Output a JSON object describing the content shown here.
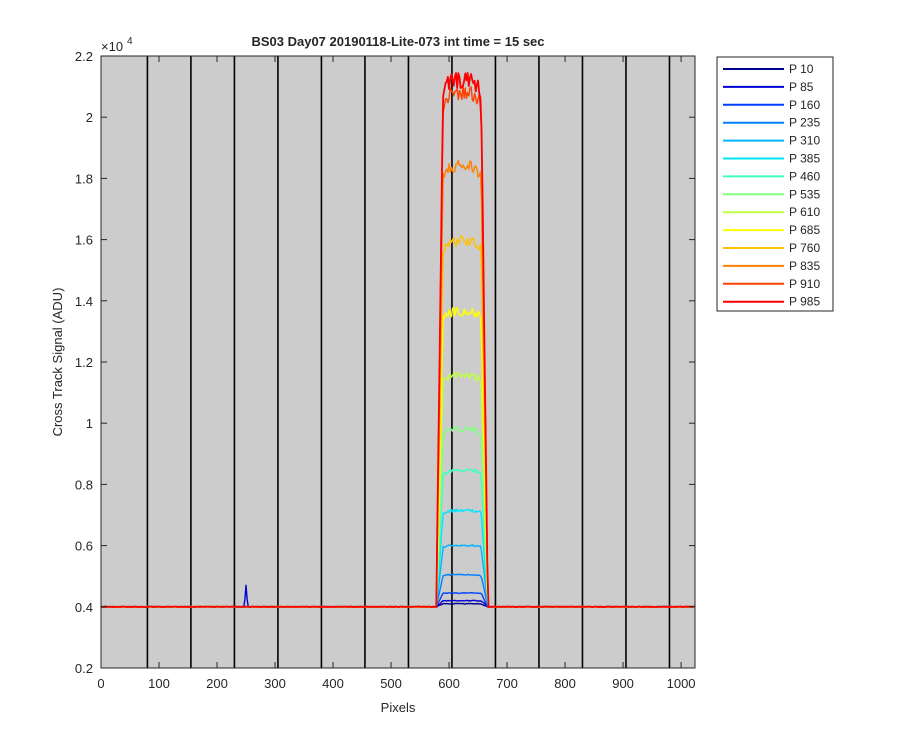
{
  "chart_data": {
    "type": "line",
    "title": "BS03 Day07 20190118-Lite-073 int time = 15 sec",
    "xlabel": "Pixels",
    "ylabel": "Cross Track Signal (ADU)",
    "y_exponent_label": "×10",
    "y_exponent": "4",
    "y_multiplier": 10000,
    "xlim": [
      0,
      1024
    ],
    "ylim": [
      0.2,
      2.2
    ],
    "x_ticks": [
      0,
      100,
      200,
      300,
      400,
      500,
      600,
      700,
      800,
      900,
      1000
    ],
    "x_tick_labels": [
      "0",
      "100",
      "200",
      "300",
      "400",
      "500",
      "600",
      "700",
      "800",
      "900",
      "1000"
    ],
    "y_ticks": [
      0.2,
      0.4,
      0.6,
      0.8,
      1.0,
      1.2,
      1.4,
      1.6,
      1.8,
      2.0,
      2.2
    ],
    "y_tick_labels": [
      "0.2",
      "0.4",
      "0.6",
      "0.8",
      "1",
      "1.2",
      "1.4",
      "1.6",
      "1.8",
      "2",
      "2.2"
    ],
    "vertical_lines_x": [
      80,
      155,
      230,
      305,
      380,
      455,
      530,
      605,
      680,
      755,
      830,
      905,
      980
    ],
    "background_color": "#cccccc",
    "legend_position": "outside-right-top",
    "grid": false,
    "baseline": 0.4,
    "plateau_x_range": [
      590,
      655
    ],
    "spike": {
      "x": 250,
      "peak": 0.47,
      "series": "P 85"
    },
    "series": [
      {
        "name": "P 10",
        "plateau": 0.41,
        "color": "#00008f"
      },
      {
        "name": "P 85",
        "plateau": 0.42,
        "color": "#0000d4"
      },
      {
        "name": "P 160",
        "plateau": 0.445,
        "color": "#0040ff"
      },
      {
        "name": "P 235",
        "plateau": 0.505,
        "color": "#0080ff"
      },
      {
        "name": "P 310",
        "plateau": 0.6,
        "color": "#00b5ff"
      },
      {
        "name": "P 385",
        "plateau": 0.715,
        "color": "#00e6ff"
      },
      {
        "name": "P 460",
        "plateau": 0.845,
        "color": "#40ffc0"
      },
      {
        "name": "P 535",
        "plateau": 0.98,
        "color": "#80ff80"
      },
      {
        "name": "P 610",
        "plateau": 1.155,
        "color": "#c0ff40"
      },
      {
        "name": "P 685",
        "plateau": 1.365,
        "color": "#ffff00"
      },
      {
        "name": "P 760",
        "plateau": 1.595,
        "color": "#ffc000"
      },
      {
        "name": "P 835",
        "plateau": 1.84,
        "color": "#ff8000"
      },
      {
        "name": "P 910",
        "plateau": 2.08,
        "color": "#ff4000"
      },
      {
        "name": "P 985",
        "plateau": 2.12,
        "color": "#ff0000"
      }
    ]
  }
}
